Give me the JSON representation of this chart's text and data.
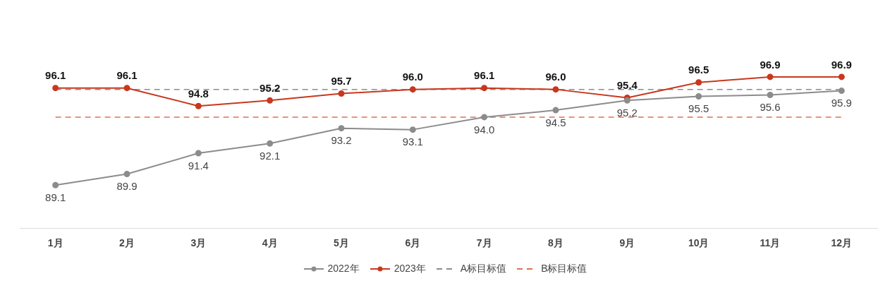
{
  "chart_data": {
    "type": "line",
    "categories": [
      "1月",
      "2月",
      "3月",
      "4月",
      "5月",
      "6月",
      "7月",
      "8月",
      "9月",
      "10月",
      "11月",
      "12月"
    ],
    "series": [
      {
        "name": "2022年",
        "color": "#8c8c8c",
        "values": [
          89.1,
          89.9,
          91.4,
          92.1,
          93.2,
          93.1,
          94.0,
          94.5,
          95.2,
          95.5,
          95.6,
          95.9
        ],
        "value_labels": [
          "89.1",
          "89.9",
          "91.4",
          "92.1",
          "93.2",
          "93.1",
          "94.0",
          "94.5",
          "95.2",
          "95.5",
          "95.6",
          "95.9"
        ]
      },
      {
        "name": "2023年",
        "color": "#c8381e",
        "values": [
          96.1,
          96.1,
          94.8,
          95.2,
          95.7,
          96.0,
          96.1,
          96.0,
          95.4,
          96.5,
          96.9,
          96.9
        ],
        "value_labels": [
          "96.1",
          "96.1",
          "94.8",
          "95.2",
          "95.7",
          "96.0",
          "96.1",
          "96.0",
          "95.4",
          "96.5",
          "96.9",
          "96.9"
        ]
      }
    ],
    "ref_lines": [
      {
        "axis": "y",
        "value": 96.0,
        "label": "A标目标值",
        "color": "#8c8c8c",
        "line_style": "dashed"
      },
      {
        "axis": "y",
        "value": 94.0,
        "label": "B标目标值",
        "color": "#e0704f",
        "line_style": "dashed"
      }
    ],
    "tick_labels": "x",
    "legend": "bottom",
    "marker": "circle",
    "line_style": "solid"
  }
}
